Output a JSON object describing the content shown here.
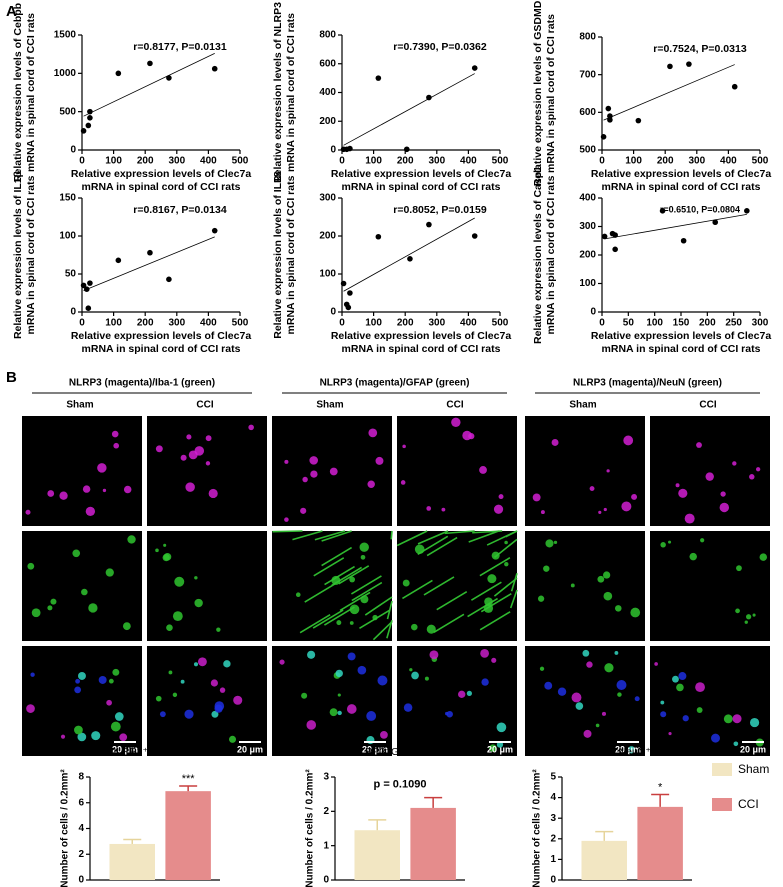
{
  "panel_labels": [
    "A",
    "B"
  ],
  "images": {
    "groups": [
      {
        "title": "NLRP3 (magenta)/Iba-1 (green)",
        "conditions": [
          "Sham",
          "CCI"
        ]
      },
      {
        "title": "NLRP3 (magenta)/GFAP (green)",
        "conditions": [
          "Sham",
          "CCI"
        ]
      },
      {
        "title": "NLRP3 (magenta)/NeuN (green)",
        "conditions": [
          "Sham",
          "CCI"
        ]
      }
    ],
    "scale_bar": "20 μm"
  },
  "legend": [
    {
      "name": "Sham",
      "color": "#f2e6c2",
      "error_color": "#e6d49b"
    },
    {
      "name": "CCI",
      "color": "#e58c8c",
      "error_color": "#c93f3f"
    }
  ],
  "chart_data": [
    {
      "type": "scatter",
      "annotation": "r=0.8177, P=0.0131",
      "x_label": [
        "Relative expression levels of Clec7a",
        "mRNA in spinal cord of CCI rats"
      ],
      "y_label": [
        "Relative expression levels of Cebpb",
        "mRNA in spinal cord of CCI rats"
      ],
      "x": [
        5,
        20,
        25,
        25,
        115,
        215,
        275,
        420
      ],
      "values": [
        250,
        320,
        420,
        500,
        1000,
        1130,
        940,
        1060
      ],
      "xlim": [
        0,
        500
      ],
      "xticks": [
        0,
        100,
        200,
        300,
        400,
        500
      ],
      "ylim": [
        0,
        1500
      ],
      "yticks": [
        0,
        500,
        1000,
        1500
      ]
    },
    {
      "type": "scatter",
      "annotation": "r=0.7390, P=0.0362",
      "x_label": [
        "Relative expression levels of Clec7a",
        "mRNA in spinal cord of CCI rats"
      ],
      "y_label": [
        "Relative expression levels of NLRP3",
        "mRNA in spinal cord of CCI rats"
      ],
      "x": [
        5,
        15,
        25,
        115,
        205,
        275,
        420
      ],
      "values": [
        5,
        5,
        10,
        500,
        5,
        365,
        570
      ],
      "xlim": [
        0,
        500
      ],
      "xticks": [
        0,
        100,
        200,
        300,
        400,
        500
      ],
      "ylim": [
        0,
        800
      ],
      "yticks": [
        0,
        200,
        400,
        600,
        800
      ]
    },
    {
      "type": "scatter",
      "annotation": "r=0.7524, P=0.0313",
      "x_label": [
        "Relative expression levels of Clec7a",
        "mRNA in spinal cord of CCI rats"
      ],
      "y_label": [
        "Relative expression levels of GSDMD",
        "mRNA in spinal cord of CCI rats"
      ],
      "x": [
        5,
        20,
        25,
        25,
        115,
        215,
        275,
        420
      ],
      "values": [
        535,
        610,
        580,
        590,
        578,
        722,
        728,
        668
      ],
      "xlim": [
        0,
        500
      ],
      "xticks": [
        0,
        100,
        200,
        300,
        400,
        500
      ],
      "ylim": [
        500,
        800
      ],
      "yticks": [
        500,
        600,
        700,
        800
      ]
    },
    {
      "type": "scatter",
      "annotation": "r=0.8167, P=0.0134",
      "x_label": [
        "Relative expression levels of Clec7a",
        "mRNA in spinal cord of CCI rats"
      ],
      "y_label": [
        "Relative expression levels of IL1β",
        "mRNA in spinal cord of CCI rats"
      ],
      "x": [
        5,
        15,
        20,
        25,
        115,
        215,
        275,
        420
      ],
      "values": [
        35,
        30,
        5,
        38,
        68,
        78,
        43,
        107
      ],
      "xlim": [
        0,
        500
      ],
      "xticks": [
        0,
        100,
        200,
        300,
        400,
        500
      ],
      "ylim": [
        0,
        150
      ],
      "yticks": [
        0,
        50,
        100,
        150
      ]
    },
    {
      "type": "scatter",
      "annotation": "r=0.8052, P=0.0159",
      "x_label": [
        "Relative expression levels of Clec7a",
        "mRNA in spinal cord of CCI rats"
      ],
      "y_label": [
        "Relative expression levels of IL18",
        "mRNA in spinal cord of CCI rats"
      ],
      "x": [
        5,
        15,
        20,
        25,
        115,
        215,
        275,
        420
      ],
      "values": [
        75,
        20,
        12,
        50,
        198,
        140,
        230,
        200
      ],
      "xlim": [
        0,
        500
      ],
      "xticks": [
        0,
        100,
        200,
        300,
        400,
        500
      ],
      "ylim": [
        0,
        300
      ],
      "yticks": [
        0,
        100,
        200,
        300
      ]
    },
    {
      "type": "scatter",
      "annotation": "r=0.6510, P=0.0804",
      "x_label": [
        "Relative expression levels of Clec7a",
        "mRNA in spinal cord of CCI rats"
      ],
      "y_label": [
        "Relative expression levels of Casp1",
        "mRNA in spinal cord of CCI rats"
      ],
      "x": [
        5,
        20,
        25,
        25,
        115,
        155,
        215,
        275
      ],
      "values": [
        265,
        275,
        220,
        270,
        355,
        250,
        315,
        355
      ],
      "xlim": [
        0,
        300
      ],
      "xticks": [
        0,
        50,
        100,
        150,
        200,
        250,
        300
      ],
      "ylim": [
        0,
        400
      ],
      "yticks": [
        0,
        100,
        200,
        300,
        400
      ]
    },
    {
      "type": "bar",
      "title": "NLRP3⁺Iba-1⁺ cells",
      "y_label": "Number of cells / 0.2mm²",
      "annotation": "***",
      "values": [
        2.8,
        6.9
      ],
      "errors": [
        0.35,
        0.4
      ],
      "ylim": [
        0,
        8
      ],
      "yticks": [
        0,
        2,
        4,
        6,
        8
      ]
    },
    {
      "type": "bar",
      "title": "NLRP3⁺GFAP⁺ cells",
      "y_label": "Number of cells / 0.2mm²",
      "annotation": "p = 0.1090",
      "values": [
        1.45,
        2.1
      ],
      "errors": [
        0.3,
        0.3
      ],
      "ylim": [
        0,
        3
      ],
      "yticks": [
        0,
        1,
        2,
        3
      ]
    },
    {
      "type": "bar",
      "title": "NLRP3⁺NeuN⁺ cells",
      "y_label": "Number of cells / 0.2mm²",
      "annotation": "*",
      "values": [
        1.9,
        3.55
      ],
      "errors": [
        0.45,
        0.6
      ],
      "ylim": [
        0,
        5
      ],
      "yticks": [
        0,
        1,
        2,
        3,
        4,
        5
      ]
    }
  ]
}
